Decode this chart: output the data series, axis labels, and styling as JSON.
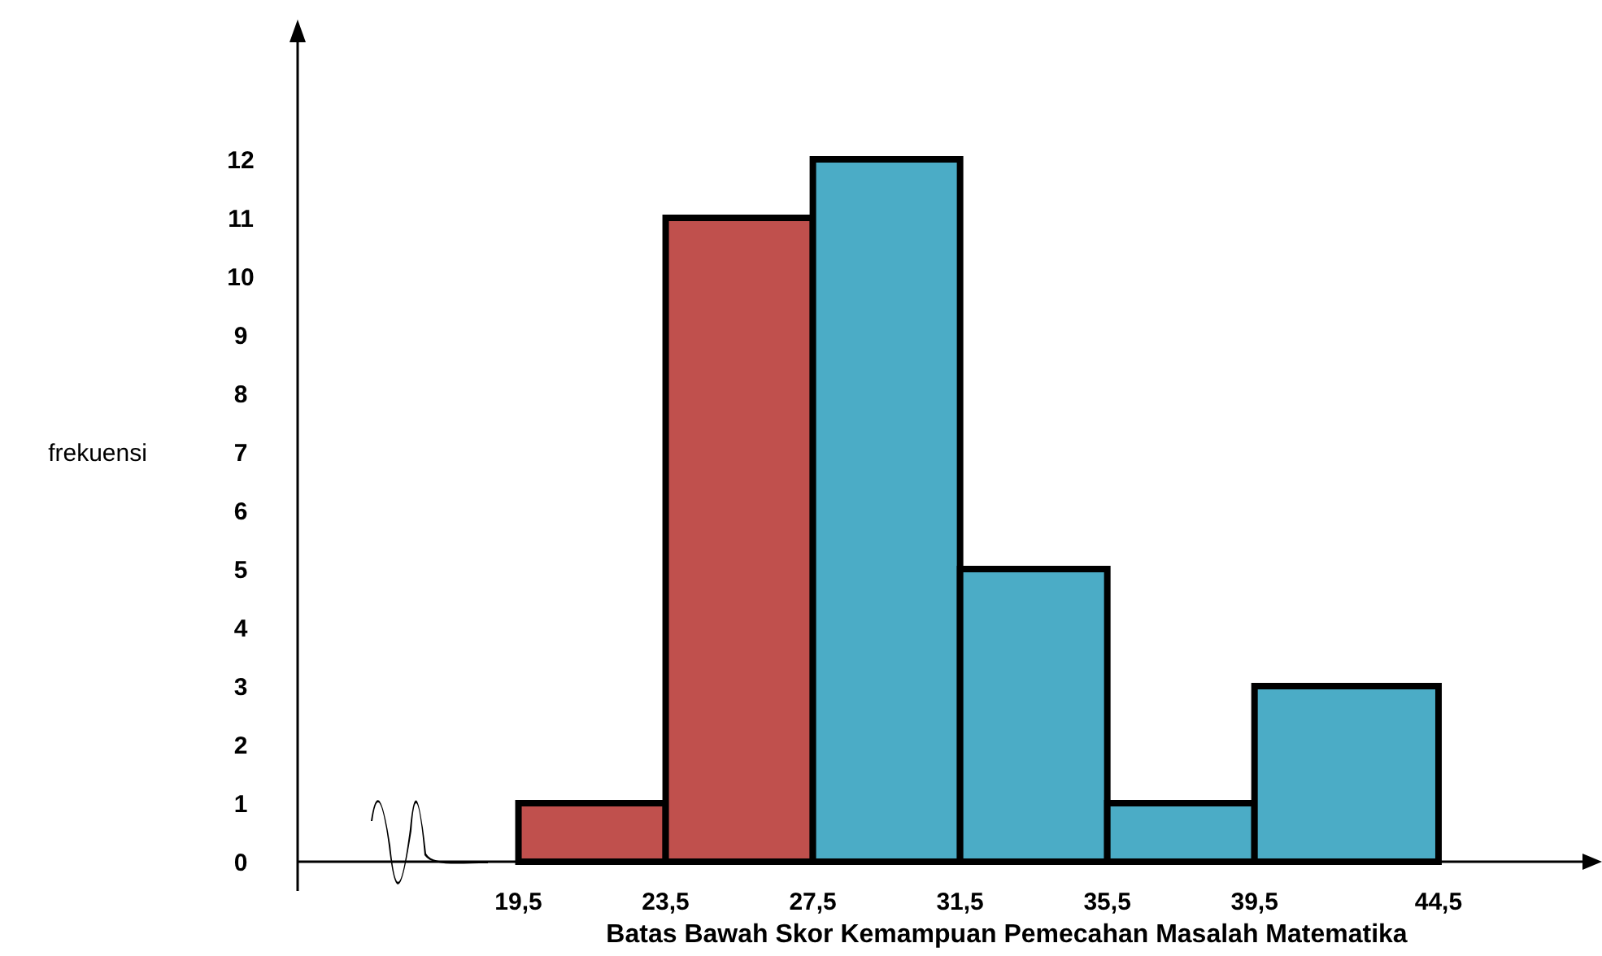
{
  "chart_data": {
    "type": "histogram",
    "xlabel": "Batas Bawah Skor Kemampuan Pemecahan Masalah Matematika",
    "ylabel": "frekuensi",
    "bins": [
      19.5,
      23.5,
      27.5,
      31.5,
      35.5,
      39.5,
      44.5
    ],
    "values": [
      1,
      11,
      12,
      5,
      1,
      3
    ],
    "colors": [
      "#c0504d",
      "#c0504d",
      "#4bacc6",
      "#4bacc6",
      "#4bacc6",
      "#4bacc6"
    ],
    "xlim": [
      13.5,
      48.5
    ],
    "xticks": [
      {
        "value": 19.5,
        "label": "19,5"
      },
      {
        "value": 23.5,
        "label": "23,5"
      },
      {
        "value": 27.5,
        "label": "27,5"
      },
      {
        "value": 31.5,
        "label": "31,5"
      },
      {
        "value": 35.5,
        "label": "35,5"
      },
      {
        "value": 39.5,
        "label": "39,5"
      },
      {
        "value": 44.5,
        "label": "44,5"
      }
    ],
    "ylim": [
      0,
      14
    ],
    "yticks": [
      0,
      1,
      2,
      3,
      4,
      5,
      6,
      7,
      8,
      9,
      10,
      11,
      12
    ],
    "grid": false
  }
}
